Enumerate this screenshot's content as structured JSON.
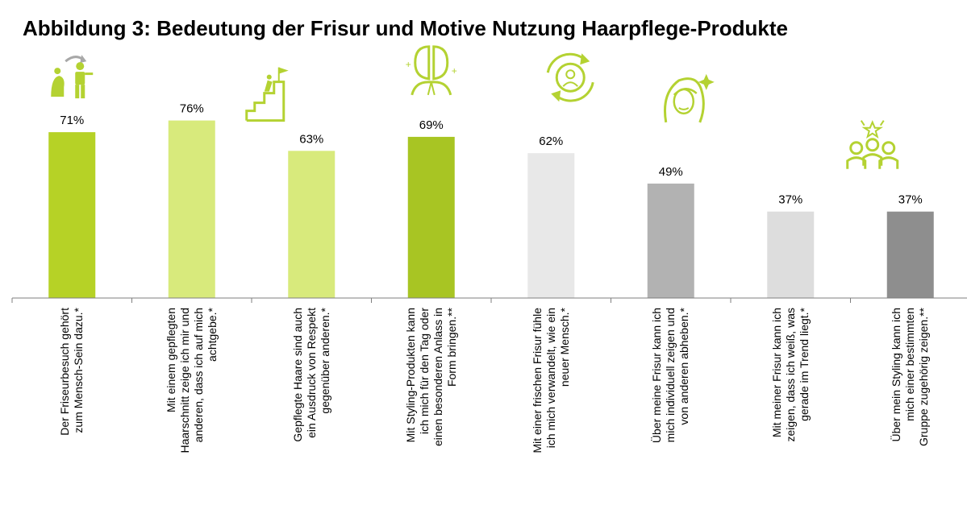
{
  "title": "Abbildung 3: Bedeutung der Frisur und Motive Nutzung Haarpflege-Produkte",
  "colors": {
    "green_dark": "#b6d226",
    "green_light": "#d8ea7c",
    "green_mid": "#a8c523",
    "gray_light": "#e8e8e8",
    "gray_mid": "#b2b2b2",
    "gray_lighter": "#dddddd",
    "gray_dark": "#8e8e8e",
    "icon": "#b4d232"
  },
  "chart_data": {
    "type": "bar",
    "title": "Abbildung 3: Bedeutung der Frisur und Motive Nutzung Haarpflege-Produkte",
    "categories": [
      [
        "Der Friseurbesuch gehört",
        "zum Mensch-Sein dazu.*"
      ],
      [
        "Mit einem gepflegten",
        "Haarschnitt zeige ich mir und",
        "anderen, dass ich auf mich",
        "achtgebe.*"
      ],
      [
        "Gepflegte Haare sind auch",
        "ein Ausdruck von Respekt",
        "gegenüber anderen.*"
      ],
      [
        "Mit Styling-Produkten kann",
        "ich mich für den Tag oder",
        "einen besonderen Anlass in",
        "Form bringen.**"
      ],
      [
        "Mit einer frischen Frisur fühle",
        "ich mich verwandelt, wie ein",
        "neuer Mensch.*"
      ],
      [
        "Über meine Frisur kann ich",
        "mich individuell zeigen und",
        "von anderen abheben.*"
      ],
      [
        "Mit meiner Frisur kann ich",
        "zeigen, dass ich weiß, was",
        "gerade im Trend liegt.*"
      ],
      [
        "Über mein Styling kann ich",
        "mich einer bestimmten",
        "Gruppe zugehörig zeigen.**"
      ]
    ],
    "values": [
      71,
      76,
      63,
      69,
      62,
      49,
      37,
      37
    ],
    "value_labels": [
      "71%",
      "76%",
      "63%",
      "69%",
      "62%",
      "49%",
      "37%",
      "37%"
    ],
    "bar_colors": [
      "#b6d226",
      "#d8ea7c",
      "#d8ea7c",
      "#a8c523",
      "#e8e8e8",
      "#b2b2b2",
      "#dddddd",
      "#8e8e8e"
    ],
    "icons": [
      "evolution-icon",
      "summit-climb-icon",
      "",
      "mirror-faces-icon",
      "person-cycle-icon",
      "woman-sparkle-icon",
      "",
      "group-star-icon"
    ],
    "ylim": [
      0,
      100
    ],
    "grid": false,
    "legend": "none"
  }
}
